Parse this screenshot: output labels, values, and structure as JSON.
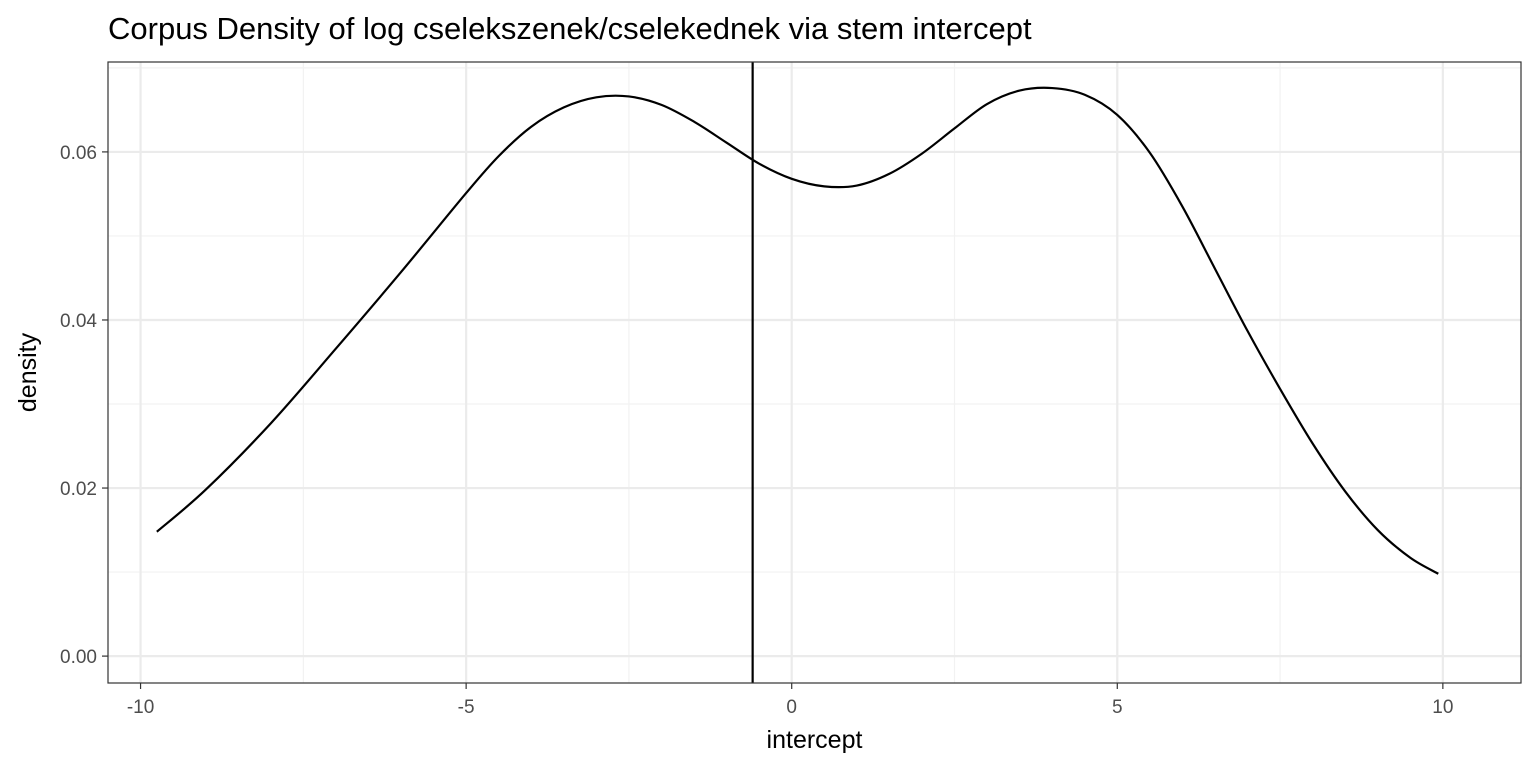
{
  "chart_data": {
    "type": "line",
    "title": "Corpus Density of log cselekszenek/cselekednek via stem intercept",
    "xlabel": "intercept",
    "ylabel": "density",
    "xlim": [
      -10.5,
      11.2
    ],
    "ylim": [
      -0.0032,
      0.0707
    ],
    "x_ticks": [
      -10,
      -5,
      0,
      5,
      10
    ],
    "x_tick_labels": [
      "-10",
      "-5",
      "0",
      "5",
      "10"
    ],
    "y_ticks": [
      0.0,
      0.02,
      0.04,
      0.06
    ],
    "y_tick_labels": [
      "0.00",
      "0.02",
      "0.04",
      "0.06"
    ],
    "grid": true,
    "vline_x": -0.6,
    "series": [
      {
        "x": [
          -9.75,
          -9.0,
          -8.0,
          -7.0,
          -6.0,
          -5.0,
          -4.5,
          -4.0,
          -3.5,
          -3.0,
          -2.5,
          -2.0,
          -1.5,
          -1.0,
          -0.5,
          0.0,
          0.5,
          1.0,
          1.5,
          2.0,
          2.5,
          3.0,
          3.5,
          4.0,
          4.5,
          5.0,
          5.5,
          6.0,
          6.5,
          7.0,
          7.5,
          8.0,
          8.5,
          9.0,
          9.5,
          9.93
        ],
        "y": [
          0.0148,
          0.0198,
          0.0277,
          0.0366,
          0.0457,
          0.0551,
          0.0595,
          0.063,
          0.0653,
          0.0665,
          0.0666,
          0.0656,
          0.0636,
          0.0611,
          0.0586,
          0.0568,
          0.0559,
          0.056,
          0.0574,
          0.0598,
          0.0628,
          0.0657,
          0.0673,
          0.0676,
          0.0668,
          0.0644,
          0.0599,
          0.0535,
          0.0461,
          0.0387,
          0.0318,
          0.0253,
          0.0196,
          0.015,
          0.0117,
          0.0098
        ]
      }
    ],
    "colors": {
      "line": "#000000",
      "grid_major": "#ebebeb",
      "grid_minor": "#f2f2f2",
      "panel_border": "#333333",
      "tick_text": "#4d4d4d"
    }
  }
}
